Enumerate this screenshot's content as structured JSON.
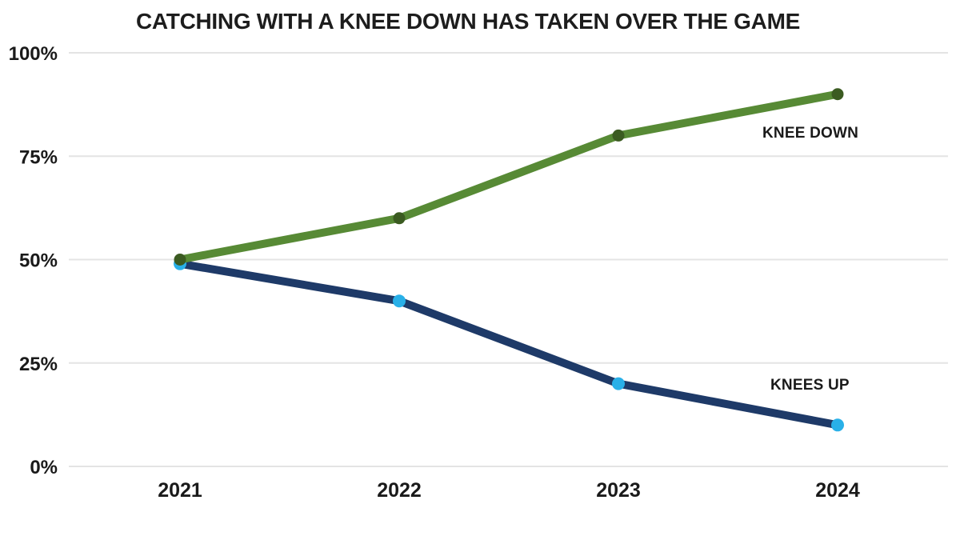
{
  "title": "CATCHING WITH A KNEE DOWN HAS TAKEN OVER THE GAME",
  "colors": {
    "background": "#ffffff",
    "title_text": "#1d1d1d",
    "axis_text": "#1a1a1a",
    "gridline": "#e4e4e4",
    "knee_down_line": "#578a35",
    "knee_down_marker": "#3b5b21",
    "knees_up_line": "#1e3a68",
    "knees_up_marker": "#29b0e8"
  },
  "chart_data": {
    "type": "line",
    "title": "CATCHING WITH A KNEE DOWN HAS TAKEN OVER THE GAME",
    "categories": [
      "2021",
      "2022",
      "2023",
      "2024"
    ],
    "series": [
      {
        "name": "KNEE DOWN",
        "values": [
          50,
          60,
          80,
          90
        ],
        "line_color": "#578a35",
        "marker_color": "#3b5b21"
      },
      {
        "name": "KNEES UP",
        "values": [
          49,
          40,
          20,
          10
        ],
        "line_color": "#1e3a68",
        "marker_color": "#29b0e8"
      }
    ],
    "xlabel": "",
    "ylabel": "",
    "ylim": [
      0,
      100
    ],
    "y_ticks": [
      {
        "value": 0,
        "label": "0%"
      },
      {
        "value": 25,
        "label": "25%"
      },
      {
        "value": 50,
        "label": "50%"
      },
      {
        "value": 75,
        "label": "75%"
      },
      {
        "value": 100,
        "label": "100%"
      }
    ],
    "grid": "horizontal-only",
    "legend_position": "inline-annotations-right"
  }
}
